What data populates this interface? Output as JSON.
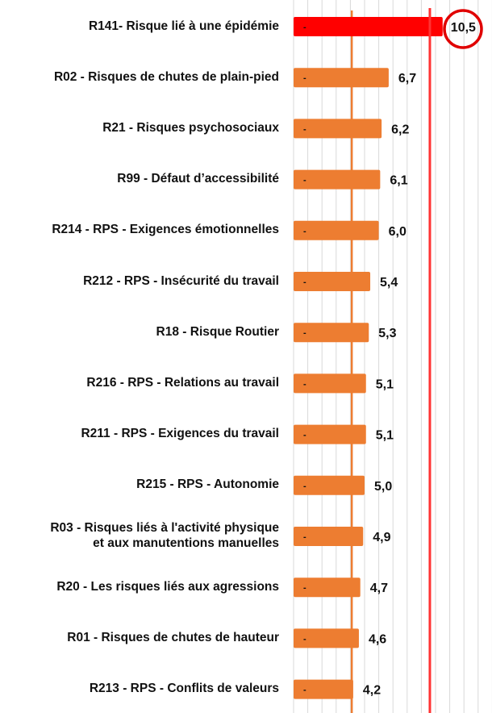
{
  "chart_data": {
    "type": "bar",
    "orientation": "horizontal",
    "categories": [
      "R141- Risque lié à une épidémie",
      "R02 - Risques de chutes de plain-pied",
      "R21 - Risques psychosociaux",
      "R99 - Défaut d’accessibilité",
      "R214 - RPS - Exigences émotionnelles",
      "R212 - RPS - Insécurité du travail",
      "R18 - Risque Routier",
      "R216 - RPS - Relations au travail",
      "R211 - RPS - Exigences du travail",
      "R215 - RPS - Autonomie",
      "R03 - Risques liés à l'activité physique\net aux manutentions manuelles",
      "R20 - Les risques liés aux agressions",
      "R01 - Risques de chutes de hauteur",
      "R213 - RPS - Conflits de valeurs"
    ],
    "values": [
      10.5,
      6.7,
      6.2,
      6.1,
      6.0,
      5.4,
      5.3,
      5.1,
      5.1,
      5.0,
      4.9,
      4.7,
      4.6,
      4.2
    ],
    "data_labels": [
      "10,5",
      "6,7",
      "6,2",
      "6,1",
      "6,0",
      "5,4",
      "5,3",
      "5,1",
      "5,1",
      "5,0",
      "4,9",
      "4,7",
      "4,6",
      "4,2"
    ],
    "highlighted_index": 0,
    "bar_marker": "-",
    "xlim": [
      0,
      14
    ],
    "grid": true,
    "reference_lines": [
      4.1,
      9.6
    ],
    "colors": {
      "bar": "#ED7D31",
      "highlight": "#FF0000",
      "reference_1": "#ED7D31",
      "reference_2": "#FF3333",
      "grid": "#D9D9D9"
    }
  }
}
